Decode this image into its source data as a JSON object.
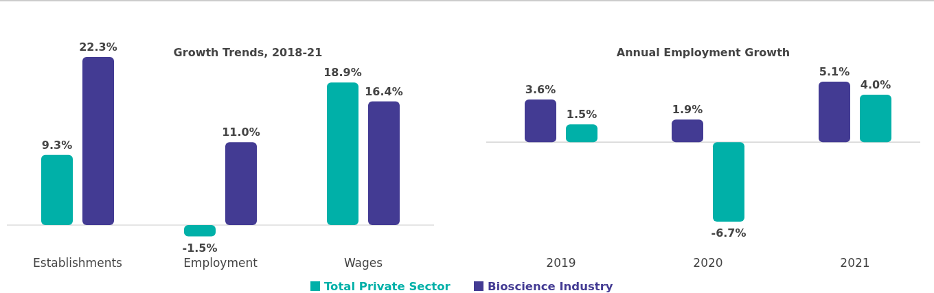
{
  "chart_data": [
    {
      "type": "bar",
      "title": "Growth Trends, 2018-21",
      "categories": [
        "Establishments",
        "Employment",
        "Wages"
      ],
      "series": [
        {
          "name": "Total Private Sector",
          "color": "#00b0a8",
          "values": [
            9.3,
            -1.5,
            18.9
          ],
          "value_labels": [
            "9.3%",
            "-1.5%",
            "18.9%"
          ]
        },
        {
          "name": "Bioscience Industry",
          "color": "#433b93",
          "values": [
            22.3,
            11.0,
            16.4
          ],
          "value_labels": [
            "22.3%",
            "11.0%",
            "16.4%"
          ]
        }
      ],
      "legend": "bottom"
    },
    {
      "type": "bar",
      "title": "Annual Employment Growth",
      "categories": [
        "2019",
        "2020",
        "2021"
      ],
      "series": [
        {
          "name": "Bioscience Industry",
          "color": "#433b93",
          "values": [
            3.6,
            1.9,
            5.1
          ],
          "value_labels": [
            "3.6%",
            "1.9%",
            "5.1%"
          ]
        },
        {
          "name": "Total Private Sector",
          "color": "#00b0a8",
          "values": [
            1.5,
            -6.7,
            4.0
          ],
          "value_labels": [
            "1.5%",
            "-6.7%",
            "4.0%"
          ]
        }
      ],
      "legend": "bottom"
    }
  ]
}
